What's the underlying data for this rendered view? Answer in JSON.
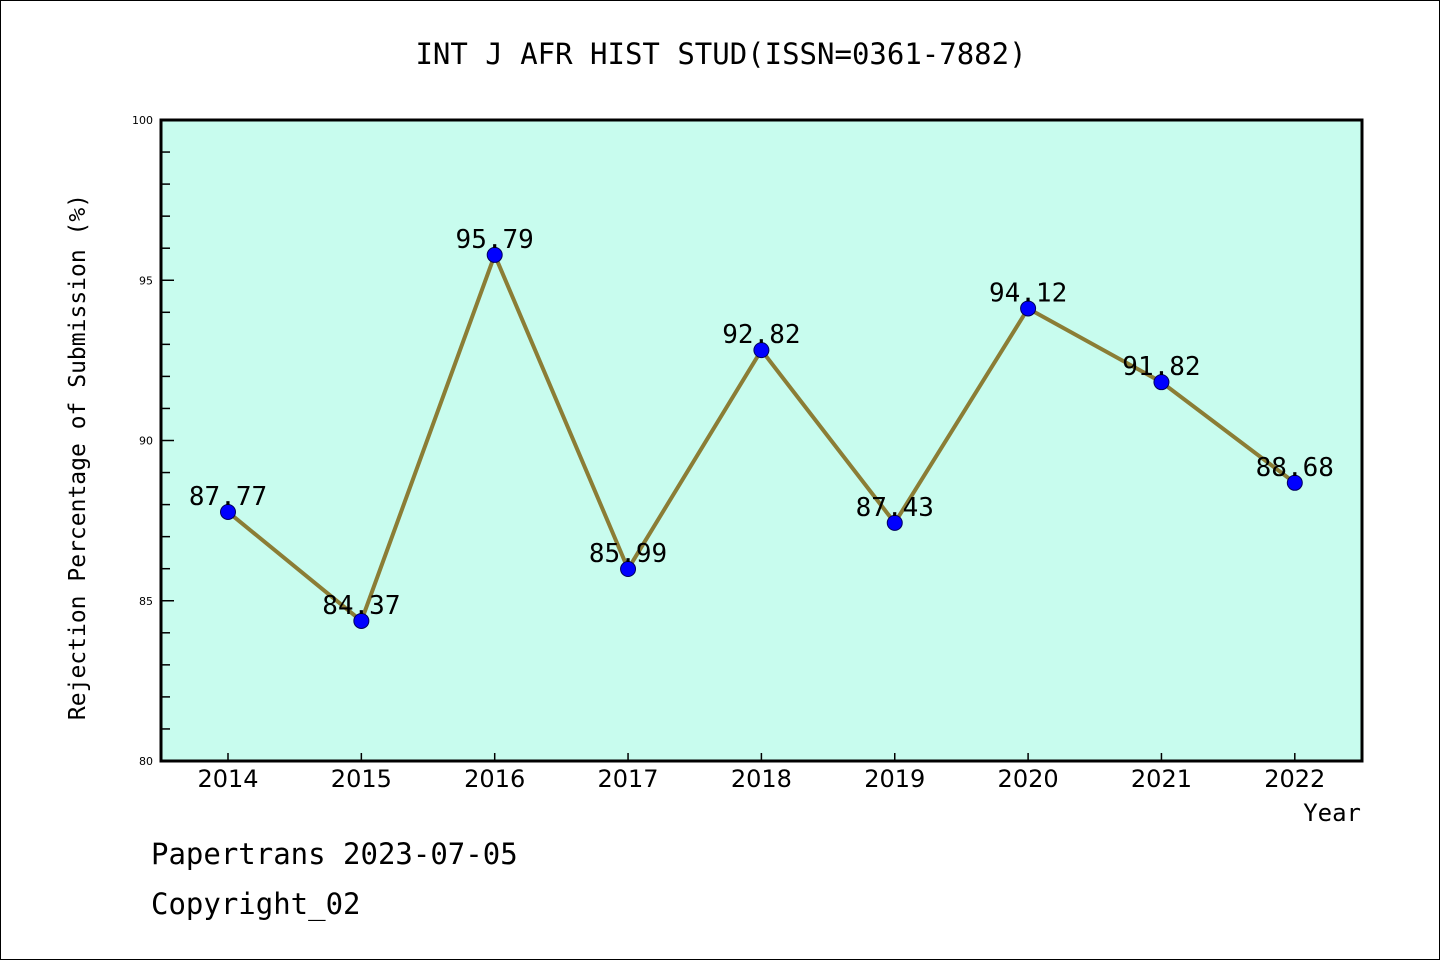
{
  "chart_data": {
    "type": "line",
    "title": "INT J AFR HIST STUD(ISSN=0361-7882)",
    "xlabel": "Year",
    "ylabel": "Rejection Percentage of Submission (%)",
    "categories": [
      "2014",
      "2015",
      "2016",
      "2017",
      "2018",
      "2019",
      "2020",
      "2021",
      "2022"
    ],
    "values": [
      87.77,
      84.37,
      95.79,
      85.99,
      92.82,
      87.43,
      94.12,
      91.82,
      88.68
    ],
    "data_labels": [
      "87.77",
      "84.37",
      "95.79",
      "85.99",
      "92.82",
      "87.43",
      "94.12",
      "91.82",
      "88.68"
    ],
    "ylim": [
      80,
      100
    ],
    "yticks": [
      "80",
      "85",
      "90",
      "95",
      "100"
    ],
    "grid": false,
    "colors": {
      "background": "#c8fcee",
      "line": "#8b7d35",
      "marker": "#0000ff"
    }
  },
  "footer": {
    "line1": "Papertrans 2023-07-05",
    "line2": "Copyright_02"
  }
}
